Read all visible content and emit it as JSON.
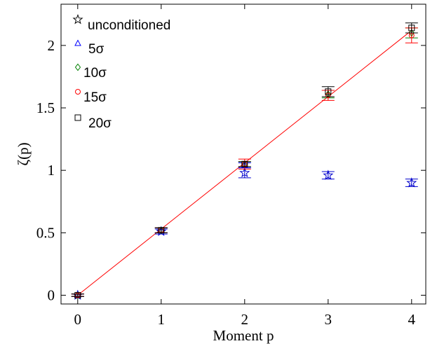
{
  "chart_data": {
    "type": "scatter",
    "xlabel": "Moment p",
    "ylabel": "ζ(p)",
    "xlim": [
      -0.2,
      4.17
    ],
    "ylim": [
      -0.07,
      2.33
    ],
    "x_ticks": [
      "0",
      "1",
      "2",
      "3",
      "4"
    ],
    "y_ticks": [
      "0",
      "0.5",
      "1",
      "1.5",
      "2"
    ],
    "grid": false,
    "legend_position": "top-left",
    "fit_line": {
      "color": "#ff0000",
      "x": [
        0,
        4
      ],
      "y": [
        0,
        2.12
      ]
    },
    "series": [
      {
        "name": "unconditioned",
        "marker": "star",
        "color": "#0000cc",
        "x": [
          0,
          1,
          2,
          3,
          4
        ],
        "y": [
          0,
          0.51,
          0.98,
          0.96,
          0.9
        ],
        "error": [
          0.01,
          0.02,
          0.04,
          0.03,
          0.03
        ]
      },
      {
        "name": "5σ",
        "marker": "triangle",
        "color": "#0000ff",
        "x": [
          0,
          1,
          2
        ],
        "y": [
          0,
          0.52,
          1.04
        ],
        "error": [
          0.01,
          0.02,
          0.02
        ]
      },
      {
        "name": "10σ",
        "marker": "diamond",
        "color": "#008000",
        "x": [
          0,
          1,
          2,
          3,
          4
        ],
        "y": [
          0,
          0.52,
          1.05,
          1.61,
          2.1
        ],
        "error": [
          0.01,
          0.02,
          0.02,
          0.03,
          0.04
        ]
      },
      {
        "name": "15σ",
        "marker": "circle",
        "color": "#ff0000",
        "x": [
          0,
          1,
          2,
          3,
          4
        ],
        "y": [
          0,
          0.52,
          1.05,
          1.6,
          2.08
        ],
        "error": [
          0.01,
          0.02,
          0.04,
          0.04,
          0.06
        ]
      },
      {
        "name": "20σ",
        "marker": "square",
        "color": "#000000",
        "x": [
          0,
          1,
          2,
          3,
          4
        ],
        "y": [
          0,
          0.52,
          1.05,
          1.63,
          2.14
        ],
        "error": [
          0.01,
          0.02,
          0.02,
          0.04,
          0.04
        ]
      }
    ]
  }
}
